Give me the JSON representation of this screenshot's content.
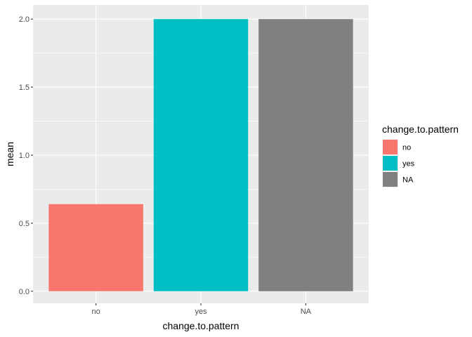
{
  "chart_data": {
    "type": "bar",
    "categories": [
      "no",
      "yes",
      "NA"
    ],
    "values": [
      0.64,
      2.0,
      2.0
    ],
    "xlabel": "change.to.pattern",
    "ylabel": "mean",
    "ylim": [
      0,
      2.0
    ],
    "y_ticks": [
      0.0,
      0.5,
      1.0,
      1.5,
      2.0
    ],
    "y_tick_labels": [
      "0.0",
      "0.5",
      "1.0",
      "1.5",
      "2.0"
    ],
    "colors": [
      "#F8766D",
      "#00BFC4",
      "#808080"
    ],
    "grid": true,
    "legend": {
      "title": "change.to.pattern",
      "placement": "right",
      "entries": [
        "no",
        "yes",
        "NA"
      ]
    },
    "panel_background": "#EBEBEB",
    "grid_color": "#FFFFFF"
  }
}
